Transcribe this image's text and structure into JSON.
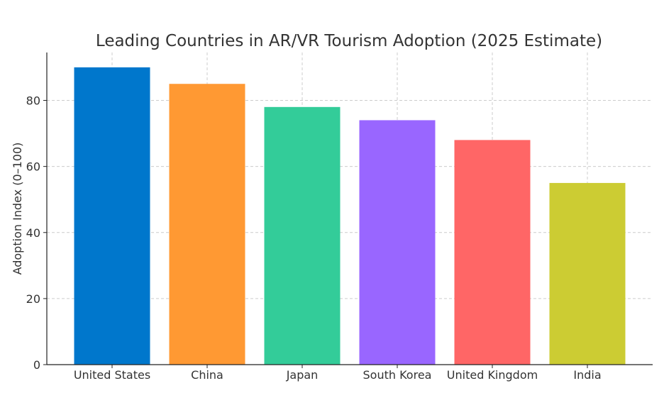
{
  "chart_data": {
    "type": "bar",
    "title": "Leading Countries in AR/VR Tourism Adoption (2025 Estimate)",
    "xlabel": "",
    "ylabel": "Adoption Index (0–100)",
    "categories": [
      "United States",
      "China",
      "Japan",
      "South Korea",
      "United Kingdom",
      "India"
    ],
    "values": [
      90,
      85,
      78,
      74,
      68,
      55
    ],
    "colors": [
      "#0077CC",
      "#FF9933",
      "#33CC99",
      "#9966FF",
      "#FF6666",
      "#CCCC33"
    ],
    "ylim": [
      0,
      94.5
    ],
    "yticks": [
      0,
      20,
      40,
      60,
      80
    ],
    "grid": true,
    "legend": "none"
  }
}
